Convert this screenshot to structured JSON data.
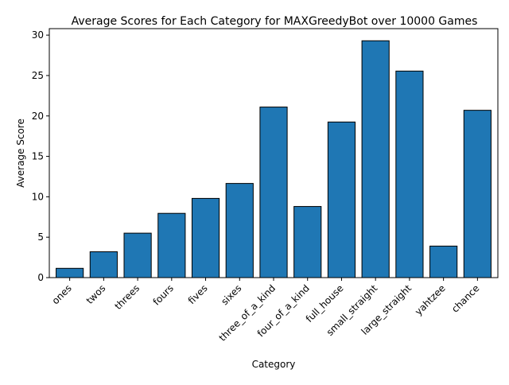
{
  "chart_data": {
    "type": "bar",
    "title": "Average Scores for Each Category for MAXGreedyBot over 10000 Games",
    "xlabel": "Category",
    "ylabel": "Average Score",
    "categories": [
      "ones",
      "twos",
      "threes",
      "fours",
      "fives",
      "sixes",
      "three_of_a_kind",
      "four_of_a_kind",
      "full_house",
      "small_straight",
      "large_straight",
      "yahtzee",
      "chance"
    ],
    "values": [
      1.15,
      3.2,
      5.5,
      7.95,
      9.8,
      11.65,
      21.1,
      8.8,
      19.25,
      29.3,
      25.55,
      3.9,
      20.7
    ],
    "ylim": [
      0,
      30.8
    ],
    "yticks": [
      0,
      5,
      10,
      15,
      20,
      25,
      30
    ],
    "grid": false,
    "bar_color": "#1f77b4",
    "edge_color": "#000000"
  }
}
